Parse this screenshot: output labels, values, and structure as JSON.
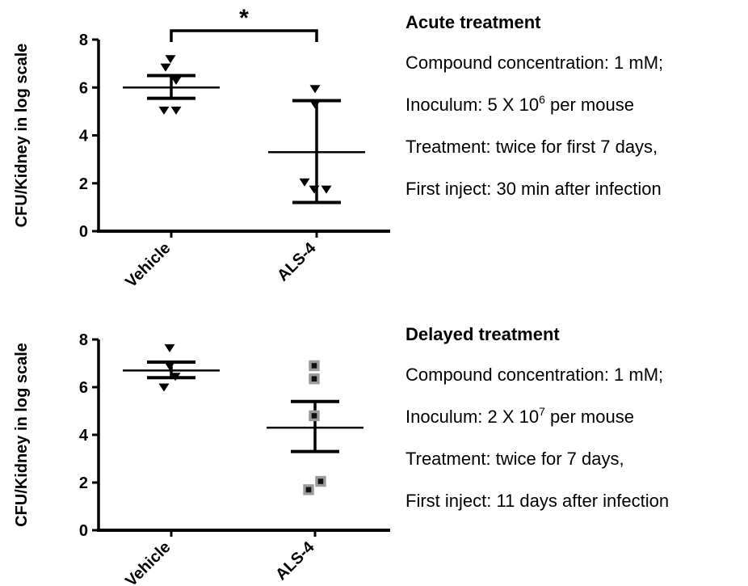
{
  "figure": {
    "background": "#ffffff",
    "text_color": "#000000"
  },
  "chart_data": [
    {
      "type": "scatter",
      "panel": "Acute treatment",
      "ylabel": "CFU/Kidney in log scale",
      "xlabel": "",
      "ylim": [
        0,
        8
      ],
      "yticks": [
        0,
        2,
        4,
        6,
        8
      ],
      "grid": false,
      "categories": [
        "Vehicle",
        "ALS-4"
      ],
      "groups": [
        {
          "name": "Vehicle",
          "marker": "triangle-down",
          "marker_color": "#000000",
          "points": [
            7.2,
            6.85,
            6.3,
            5.05,
            5.05
          ],
          "point_x_offsets": [
            -1,
            -7,
            6,
            -9,
            6
          ],
          "mean": 6.0,
          "err_low": 5.55,
          "err_high": 6.5
        },
        {
          "name": "ALS-4",
          "marker": "triangle-down",
          "marker_color": "#000000",
          "points": [
            5.95,
            5.3,
            2.05,
            1.75,
            1.75
          ],
          "point_x_offsets": [
            -2,
            -2,
            -15,
            -3,
            12
          ],
          "mean": 3.3,
          "err_low": 1.2,
          "err_high": 5.45
        }
      ],
      "significance": {
        "label": "*",
        "groups": [
          "Vehicle",
          "ALS-4"
        ]
      }
    },
    {
      "type": "scatter",
      "panel": "Delayed treatment",
      "ylabel": "CFU/Kidney in log scale",
      "xlabel": "",
      "ylim": [
        0,
        8
      ],
      "yticks": [
        0,
        2,
        4,
        6,
        8
      ],
      "grid": false,
      "categories": [
        "Vehicle",
        "ALS-4"
      ],
      "groups": [
        {
          "name": "Vehicle",
          "marker": "triangle-down",
          "marker_color": "#000000",
          "points": [
            7.65,
            6.9,
            6.45,
            6.0
          ],
          "point_x_offsets": [
            -2,
            -2,
            5,
            -9
          ],
          "mean": 6.7,
          "err_low": 6.4,
          "err_high": 7.05
        },
        {
          "name": "ALS-4",
          "marker": "square",
          "marker_color": "#111111",
          "marker_border": "#9b9b9b",
          "points": [
            6.9,
            6.35,
            4.8,
            2.05,
            1.7
          ],
          "point_x_offsets": [
            -1,
            -1,
            -1,
            7,
            -8
          ],
          "mean": 4.3,
          "err_low": 3.3,
          "err_high": 5.4
        }
      ],
      "significance": null
    }
  ],
  "panels": [
    {
      "title": "Acute treatment",
      "lines": [
        [
          {
            "t": "Compound concentration: 1 mM;"
          }
        ],
        [
          {
            "t": "Inoculum: 5 X 10"
          },
          {
            "t": "6",
            "sup": true
          },
          {
            "t": " per mouse"
          }
        ],
        [
          {
            "t": "Treatment: twice for first 7 days,"
          }
        ],
        [
          {
            "t": "First inject: 30 min after infection"
          }
        ]
      ]
    },
    {
      "title": "Delayed treatment",
      "lines": [
        [
          {
            "t": "Compound concentration: 1 mM;"
          }
        ],
        [
          {
            "t": "Inoculum: 2 X 10"
          },
          {
            "t": "7",
            "sup": true
          },
          {
            "t": " per mouse"
          }
        ],
        [
          {
            "t": "Treatment: twice for 7 days,"
          }
        ],
        [
          {
            "t": "First inject: 11 days after infection"
          }
        ]
      ]
    }
  ]
}
